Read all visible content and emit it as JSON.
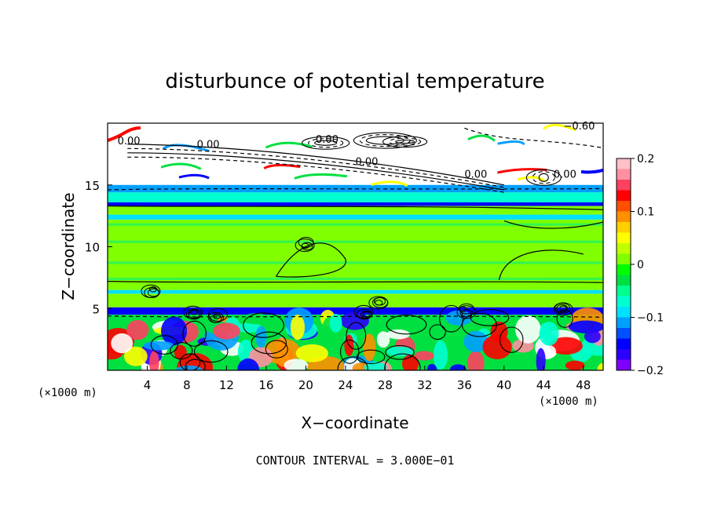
{
  "chart_data": {
    "type": "heatmap",
    "title": "disturbunce of potential temperature",
    "xlabel": "X−coordinate",
    "ylabel": "Z−coordinate",
    "x_unit_left": "(×1000 m)",
    "x_unit_right": "(×1000 m)",
    "xlim": [
      0,
      50
    ],
    "ylim": [
      0,
      20
    ],
    "x_ticks": [
      4,
      8,
      12,
      16,
      20,
      24,
      28,
      32,
      36,
      40,
      44,
      48
    ],
    "y_ticks": [
      5,
      10,
      15
    ],
    "colorbar": {
      "range": [
        -0.2,
        0.2
      ],
      "ticks": [
        0.2,
        0.1,
        0,
        -0.1,
        -0.2
      ],
      "tick_labels": [
        "0.2",
        "0.1",
        "0",
        "−0.1",
        "−0.2"
      ],
      "colors": [
        "#7f00ff",
        "#2a00ff",
        "#0000ff",
        "#0050ff",
        "#00a0ff",
        "#00e0ff",
        "#00ffd0",
        "#00ff90",
        "#00e040",
        "#00ff00",
        "#80ff00",
        "#c0ff00",
        "#ffff00",
        "#ffd000",
        "#ff9000",
        "#ff5000",
        "#ff0000",
        "#ff4060",
        "#ff90a0",
        "#ffc0c8"
      ]
    },
    "bands": [
      {
        "z": [
          0,
          4.5
        ],
        "desc": "turbulent mixed"
      },
      {
        "z": [
          4.5,
          5.1
        ],
        "value": -0.15
      },
      {
        "z": [
          5.1,
          6.2
        ],
        "value": 0.02
      },
      {
        "z": [
          6.2,
          6.5
        ],
        "value": -0.09
      },
      {
        "z": [
          6.5,
          12.2
        ],
        "value": 0.02
      },
      {
        "z": [
          12.2,
          12.6
        ],
        "value": -0.09
      },
      {
        "z": [
          12.6,
          13.3
        ],
        "value": 0.02
      },
      {
        "z": [
          13.3,
          13.6
        ],
        "value": -0.15
      },
      {
        "z": [
          13.6,
          14.4
        ],
        "value": -0.07
      },
      {
        "z": [
          14.4,
          15.0
        ],
        "value": -0.12
      },
      {
        "z": [
          15.0,
          20
        ],
        "desc": "mostly white with contours"
      }
    ],
    "contour_labels": [
      "0.00",
      "0.00",
      "0.00",
      "0.00",
      "0.00",
      "0.00",
      "−0.60"
    ],
    "footer": "CONTOUR INTERVAL = 3.000E−01"
  }
}
